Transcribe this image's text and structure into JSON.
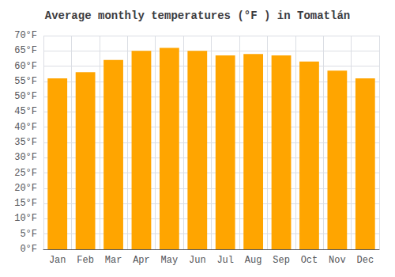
{
  "chart_data": {
    "type": "bar",
    "title": "Average monthly temperatures (°F ) in Tomatlán",
    "categories": [
      "Jan",
      "Feb",
      "Mar",
      "Apr",
      "May",
      "Jun",
      "Jul",
      "Aug",
      "Sep",
      "Oct",
      "Nov",
      "Dec"
    ],
    "values": [
      56,
      58,
      62,
      65,
      66,
      65,
      63.5,
      64,
      63.5,
      61.5,
      58.5,
      56
    ],
    "color": "#FFA500",
    "ylim": [
      0,
      70
    ],
    "yticks": [
      {
        "value": 0,
        "label": "0°F"
      },
      {
        "value": 5,
        "label": "5°F"
      },
      {
        "value": 10,
        "label": "10°F"
      },
      {
        "value": 15,
        "label": "15°F"
      },
      {
        "value": 20,
        "label": "20°F"
      },
      {
        "value": 25,
        "label": "25°F"
      },
      {
        "value": 30,
        "label": "30°F"
      },
      {
        "value": 35,
        "label": "35°F"
      },
      {
        "value": 40,
        "label": "40°F"
      },
      {
        "value": 45,
        "label": "45°F"
      },
      {
        "value": 50,
        "label": "50°F"
      },
      {
        "value": 55,
        "label": "55°F"
      },
      {
        "value": 60,
        "label": "60°F"
      },
      {
        "value": 65,
        "label": "65°F"
      },
      {
        "value": 70,
        "label": "70°F"
      }
    ],
    "grid": true
  }
}
